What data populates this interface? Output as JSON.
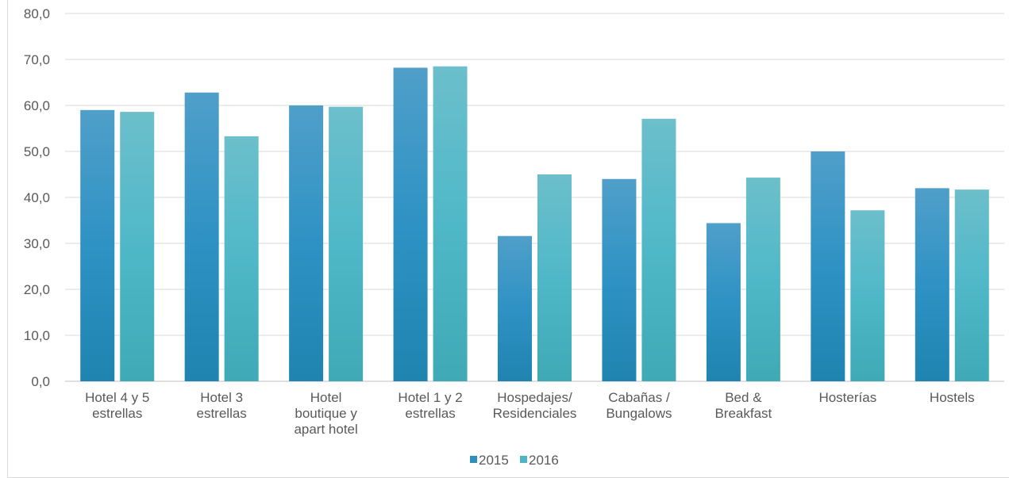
{
  "chart_data": {
    "type": "bar",
    "title": "",
    "xlabel": "",
    "ylabel": "",
    "ylim": [
      0,
      80
    ],
    "yticks": [
      "0,0",
      "10,0",
      "20,0",
      "30,0",
      "40,0",
      "50,0",
      "60,0",
      "70,0",
      "80,0"
    ],
    "grid": true,
    "legend_position": "bottom",
    "categories": [
      [
        "Hotel 4 y 5",
        "estrellas"
      ],
      [
        "Hotel 3",
        "estrellas"
      ],
      [
        "Hotel",
        "boutique y",
        "apart hotel"
      ],
      [
        "Hotel 1 y 2",
        "estrellas"
      ],
      [
        "Hospedajes/",
        "Residenciales"
      ],
      [
        "Cabañas /",
        "Bungalows"
      ],
      [
        "Bed &",
        "Breakfast"
      ],
      [
        "Hosterías"
      ],
      [
        "Hostels"
      ]
    ],
    "series": [
      {
        "name": "2015",
        "color": "#2e8fbf",
        "values": [
          59.0,
          62.8,
          60.0,
          68.2,
          31.6,
          44.0,
          34.4,
          50.0,
          42.0
        ]
      },
      {
        "name": "2016",
        "color": "#4fb5c4",
        "values": [
          58.6,
          53.3,
          59.7,
          68.5,
          45.0,
          57.1,
          44.3,
          37.2,
          41.7
        ]
      }
    ]
  }
}
